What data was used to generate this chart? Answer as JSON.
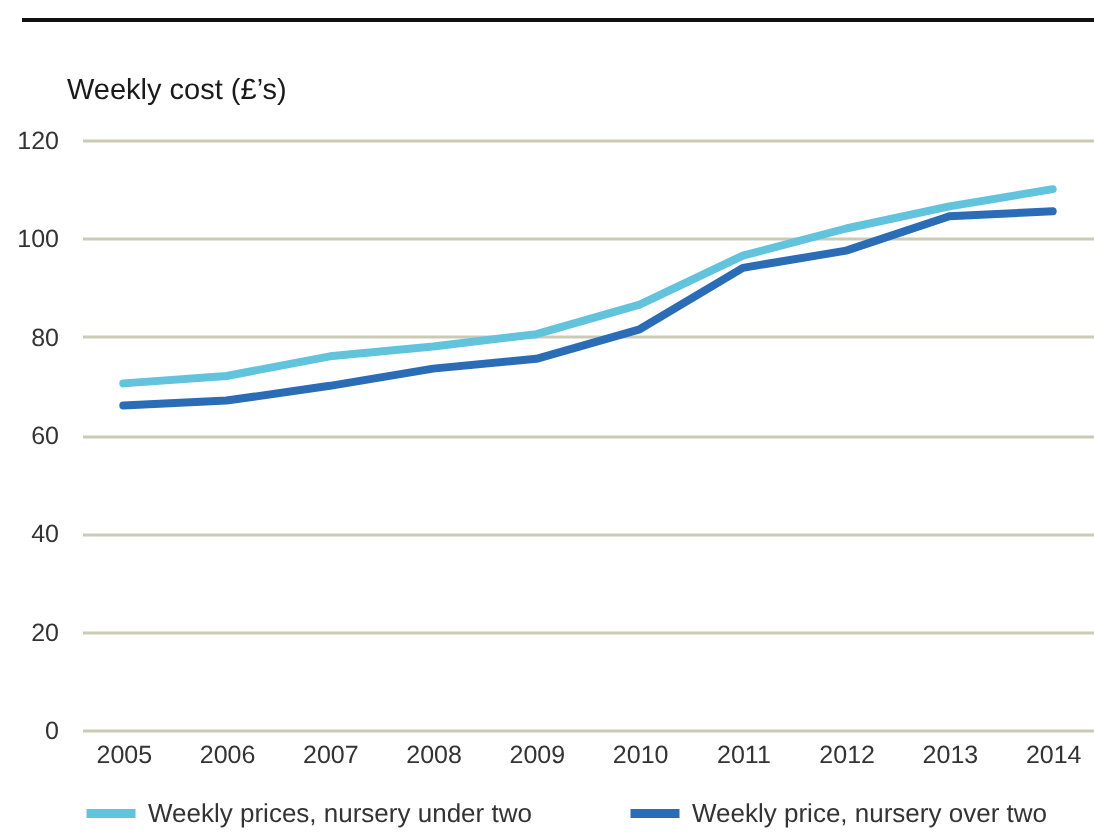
{
  "chart_data": {
    "type": "line",
    "ylabel": "Weekly cost (£’s)",
    "categories": [
      "2005",
      "2006",
      "2007",
      "2008",
      "2009",
      "2010",
      "2011",
      "2012",
      "2013",
      "2014"
    ],
    "series": [
      {
        "name": "Weekly prices, nursery under two",
        "color": "#62c3dd",
        "values": [
          70.5,
          72,
          76,
          78,
          80.5,
          86.5,
          96.5,
          102,
          106.5,
          110
        ]
      },
      {
        "name": "Weekly price, nursery over two",
        "color": "#2b6cb6",
        "values": [
          66,
          67,
          70,
          73.5,
          75.5,
          81.5,
          94,
          97.5,
          104.5,
          105.5
        ]
      }
    ],
    "ylim": [
      0,
      120
    ],
    "yticks": [
      0,
      20,
      40,
      60,
      80,
      100,
      120
    ],
    "grid": "y",
    "legend": "bottom",
    "line_style": "solid"
  }
}
